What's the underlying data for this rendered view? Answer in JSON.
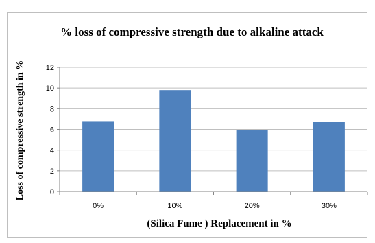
{
  "chart_data": {
    "type": "bar",
    "title": "% loss of compressive strength due to alkaline attack",
    "xlabel": "(Silica Fume ) Replacement in %",
    "ylabel": "Loss of compressive strength in %",
    "categories": [
      "0%",
      "10%",
      "20%",
      "30%"
    ],
    "values": [
      6.8,
      9.8,
      5.9,
      6.7
    ],
    "ylim": [
      0,
      12
    ],
    "yticks": [
      "0",
      "2",
      "4",
      "6",
      "8",
      "10",
      "12"
    ],
    "grid": true,
    "legend": "none",
    "bar_color": "#4F81BD",
    "grid_color": "#BFBFBF"
  }
}
